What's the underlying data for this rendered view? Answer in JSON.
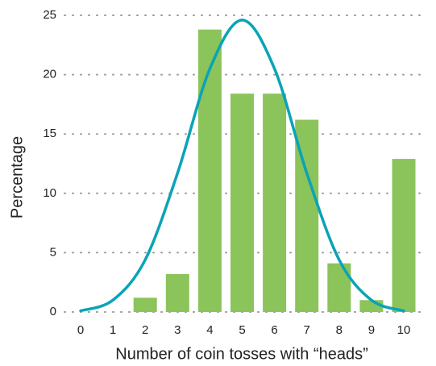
{
  "chart_data": {
    "type": "bar",
    "x_label": "Number of coin tosses with “heads”",
    "y_label": "Percentage",
    "categories": [
      "0",
      "1",
      "2",
      "3",
      "4",
      "5",
      "6",
      "7",
      "8",
      "9",
      "10"
    ],
    "series": [
      {
        "type": "bar",
        "color": "#8bc45a",
        "values": [
          0,
          0,
          1.2,
          3.2,
          23.8,
          18.4,
          18.4,
          16.2,
          4.1,
          1.0,
          12.9
        ]
      },
      {
        "type": "line",
        "color": "#0aa3b7",
        "values": [
          0.1,
          1.0,
          4.4,
          11.7,
          20.5,
          24.6,
          20.5,
          11.7,
          4.4,
          1.0,
          0.1
        ]
      }
    ],
    "ylim": [
      0,
      25
    ],
    "yticks": [
      0,
      5,
      10,
      15,
      20,
      25
    ],
    "grid": true
  }
}
